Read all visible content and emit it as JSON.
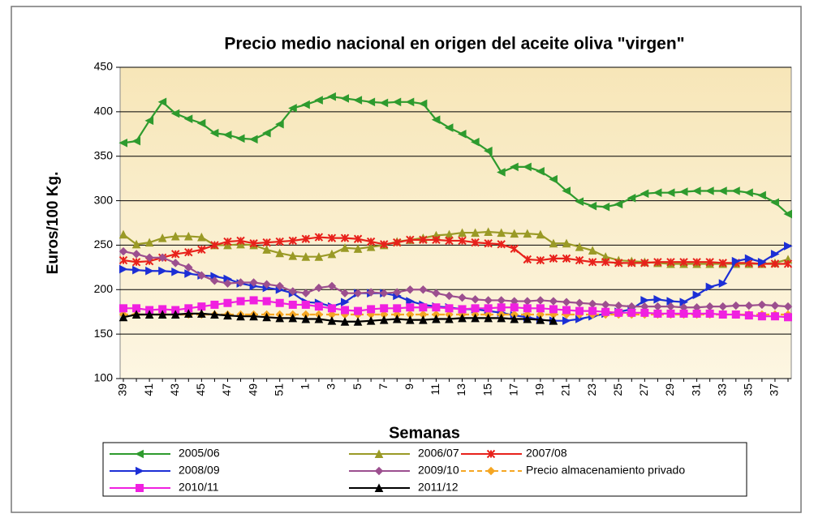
{
  "chart_data": {
    "type": "line",
    "title": "Precio medio nacional en origen del aceite oliva \"virgen\"",
    "x_label": "Semanas",
    "y_label": "Euros/100 Kg.",
    "categories": [
      "39",
      null,
      "41",
      null,
      "43",
      null,
      "45",
      null,
      "47",
      null,
      "49",
      null,
      "51",
      null,
      "1",
      null,
      "3",
      null,
      "5",
      null,
      "7",
      null,
      "9",
      null,
      "11",
      null,
      "13",
      null,
      "15",
      null,
      "17",
      null,
      "19",
      null,
      "21",
      null,
      "23",
      null,
      "25",
      null,
      "27",
      null,
      "29",
      null,
      "31",
      null,
      "33",
      null,
      "35",
      null,
      "37",
      null
    ],
    "ylim": [
      100,
      450
    ],
    "yticks": [
      100,
      150,
      200,
      250,
      300,
      350,
      400,
      450
    ],
    "grid": true,
    "legend": "bottom",
    "series": [
      {
        "name": "2005/06",
        "color": "#2e9b2e",
        "marker": "triangle-left",
        "dashed": false,
        "values": [
          365,
          367,
          390,
          411,
          398,
          392,
          387,
          376,
          374,
          370,
          369,
          376,
          386,
          404,
          408,
          413,
          417,
          415,
          413,
          411,
          410,
          411,
          411,
          409,
          391,
          382,
          375,
          366,
          356,
          332,
          338,
          338,
          333,
          324,
          311,
          299,
          294,
          293,
          296,
          303,
          308,
          309,
          309,
          310,
          311,
          311,
          311,
          311,
          309,
          306,
          298,
          285
        ]
      },
      {
        "name": "2006/07",
        "color": "#9a9a26",
        "marker": "triangle-up",
        "dashed": false,
        "values": [
          262,
          251,
          253,
          258,
          260,
          260,
          259,
          250,
          250,
          251,
          250,
          245,
          241,
          238,
          237,
          237,
          240,
          247,
          246,
          248,
          250,
          254,
          256,
          258,
          261,
          262,
          264,
          264,
          265,
          264,
          263,
          263,
          262,
          252,
          252,
          248,
          244,
          237,
          233,
          232,
          231,
          230,
          229,
          229,
          229,
          229,
          229,
          229,
          229,
          229,
          230,
          234
        ]
      },
      {
        "name": "2007/08",
        "color": "#e8211b",
        "marker": "star",
        "dashed": false,
        "values": [
          233,
          231,
          232,
          236,
          240,
          242,
          245,
          250,
          254,
          255,
          252,
          253,
          254,
          255,
          257,
          259,
          258,
          258,
          257,
          254,
          251,
          253,
          256,
          256,
          256,
          255,
          255,
          253,
          252,
          251,
          246,
          234,
          233,
          235,
          235,
          233,
          231,
          231,
          230,
          230,
          230,
          231,
          231,
          231,
          231,
          231,
          230,
          230,
          230,
          229,
          229,
          229
        ]
      },
      {
        "name": "2008/09",
        "color": "#1c2fd6",
        "marker": "triangle-right",
        "dashed": false,
        "values": [
          223,
          222,
          221,
          221,
          220,
          218,
          216,
          215,
          212,
          207,
          204,
          202,
          200,
          196,
          186,
          185,
          181,
          186,
          196,
          196,
          196,
          193,
          187,
          183,
          181,
          180,
          178,
          178,
          176,
          174,
          171,
          169,
          166,
          165,
          165,
          167,
          170,
          173,
          175,
          178,
          188,
          189,
          187,
          186,
          194,
          203,
          207,
          232,
          235,
          231,
          240,
          249
        ]
      },
      {
        "name": "2009/10",
        "color": "#9c4f8f",
        "marker": "diamond",
        "dashed": false,
        "values": [
          243,
          240,
          236,
          236,
          230,
          225,
          216,
          210,
          207,
          208,
          208,
          206,
          204,
          198,
          196,
          202,
          204,
          196,
          196,
          197,
          196,
          197,
          200,
          200,
          196,
          193,
          191,
          189,
          188,
          188,
          187,
          187,
          188,
          187,
          186,
          185,
          184,
          183,
          182,
          181,
          181,
          181,
          181,
          180,
          180,
          181,
          181,
          182,
          182,
          183,
          182,
          181
        ]
      },
      {
        "name": "Precio almacenamiento privado",
        "color": "#f5a623",
        "marker": "diamond",
        "dashed": true,
        "values": [
          172,
          172,
          172,
          172,
          172,
          172,
          172,
          172,
          172,
          172,
          172,
          172,
          172,
          172,
          172,
          172,
          172,
          172,
          172,
          172,
          172,
          172,
          172,
          172,
          172,
          172,
          172,
          172,
          172,
          172,
          172,
          172,
          172,
          172,
          172,
          172,
          172,
          172,
          172,
          172,
          172,
          172,
          172,
          172,
          172,
          172,
          172,
          172,
          172,
          172,
          172,
          172
        ]
      },
      {
        "name": "2010/11",
        "color": "#f020e0",
        "marker": "square",
        "dashed": false,
        "values": [
          179,
          179,
          177,
          178,
          177,
          179,
          181,
          183,
          185,
          187,
          188,
          187,
          185,
          183,
          183,
          181,
          179,
          177,
          176,
          178,
          179,
          179,
          180,
          180,
          180,
          179,
          178,
          179,
          179,
          180,
          180,
          179,
          179,
          178,
          177,
          176,
          176,
          175,
          174,
          174,
          174,
          173,
          173,
          173,
          173,
          173,
          172,
          172,
          171,
          170,
          170,
          169
        ]
      },
      {
        "name": "2011/12",
        "color": "#000000",
        "marker": "triangle-up",
        "dashed": false,
        "values": [
          169,
          172,
          172,
          172,
          172,
          173,
          173,
          172,
          171,
          170,
          170,
          169,
          168,
          168,
          167,
          167,
          165,
          164,
          164,
          165,
          166,
          167,
          166,
          166,
          167,
          167,
          168,
          168,
          168,
          168,
          167,
          167,
          166,
          165,
          null,
          null,
          null,
          null,
          null,
          null,
          null,
          null,
          null,
          null,
          null,
          null,
          null,
          null,
          null,
          null,
          null,
          null
        ]
      }
    ]
  }
}
